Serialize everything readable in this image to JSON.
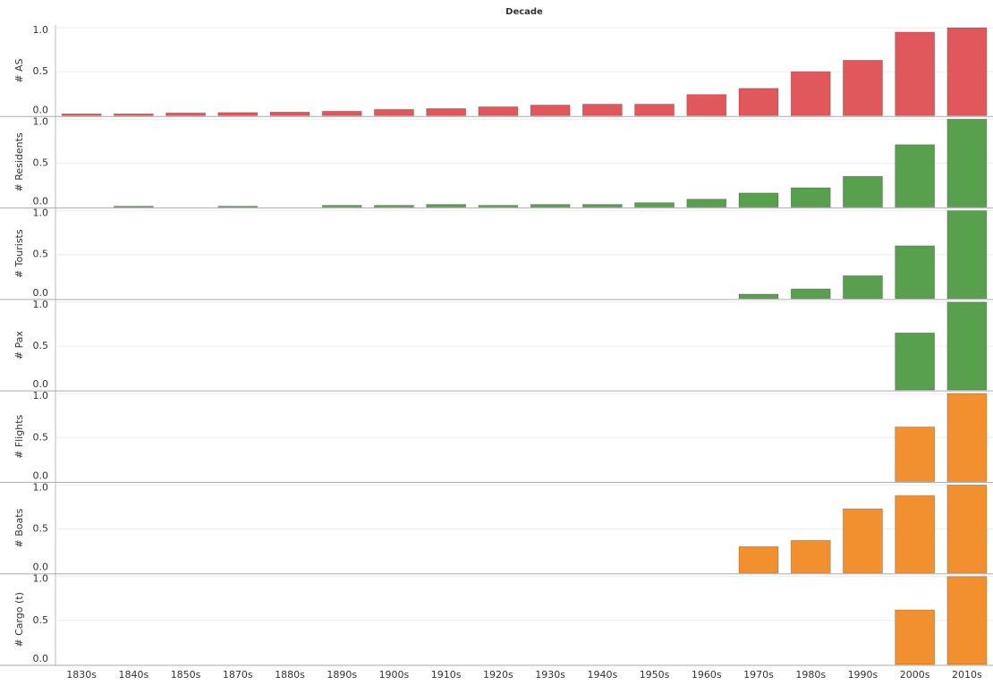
{
  "chart_data": {
    "type": "bar",
    "title": "Decade",
    "categories": [
      "1830s",
      "1840s",
      "1850s",
      "1870s",
      "1880s",
      "1890s",
      "1900s",
      "1910s",
      "1920s",
      "1930s",
      "1940s",
      "1950s",
      "1960s",
      "1970s",
      "1980s",
      "1990s",
      "2000s",
      "2010s"
    ],
    "ylim": [
      0,
      1
    ],
    "yticks": [
      {
        "value": 0,
        "label": "0.0"
      },
      0.5,
      {
        "value": 1,
        "label": "1.0"
      }
    ],
    "grid": true,
    "series": [
      {
        "name": "# AS",
        "color": "#e0585c",
        "values": [
          0.02,
          0.02,
          0.03,
          0.035,
          0.04,
          0.05,
          0.07,
          0.08,
          0.1,
          0.12,
          0.13,
          0.13,
          0.24,
          0.31,
          0.5,
          0.63,
          0.95,
          1.0
        ]
      },
      {
        "name": "# Residents",
        "color": "#59a04e",
        "values": [
          null,
          0.01,
          null,
          0.01,
          null,
          0.02,
          0.02,
          0.03,
          0.02,
          0.03,
          0.03,
          0.05,
          0.09,
          0.16,
          0.22,
          0.35,
          0.71,
          1.0
        ]
      },
      {
        "name": "# Tourists",
        "color": "#59a04e",
        "values": [
          null,
          null,
          null,
          null,
          null,
          null,
          null,
          null,
          null,
          null,
          null,
          null,
          null,
          0.05,
          0.11,
          0.26,
          0.6,
          1.0
        ]
      },
      {
        "name": "# Pax",
        "color": "#59a04e",
        "values": [
          null,
          null,
          null,
          null,
          null,
          null,
          null,
          null,
          null,
          null,
          null,
          null,
          null,
          null,
          null,
          null,
          0.65,
          1.0
        ]
      },
      {
        "name": "# Flights",
        "color": "#f28f2e",
        "values": [
          null,
          null,
          null,
          null,
          null,
          null,
          null,
          null,
          null,
          null,
          null,
          null,
          null,
          null,
          null,
          null,
          0.62,
          1.0
        ]
      },
      {
        "name": "# Boats",
        "color": "#f28f2e",
        "values": [
          null,
          null,
          null,
          null,
          null,
          null,
          null,
          null,
          null,
          null,
          null,
          null,
          null,
          0.3,
          0.37,
          0.73,
          0.88,
          1.0
        ]
      },
      {
        "name": "# Cargo (t)",
        "color": "#f28f2e",
        "values": [
          null,
          null,
          null,
          null,
          null,
          null,
          null,
          null,
          null,
          null,
          null,
          null,
          null,
          null,
          null,
          null,
          0.62,
          1.0
        ]
      }
    ]
  }
}
